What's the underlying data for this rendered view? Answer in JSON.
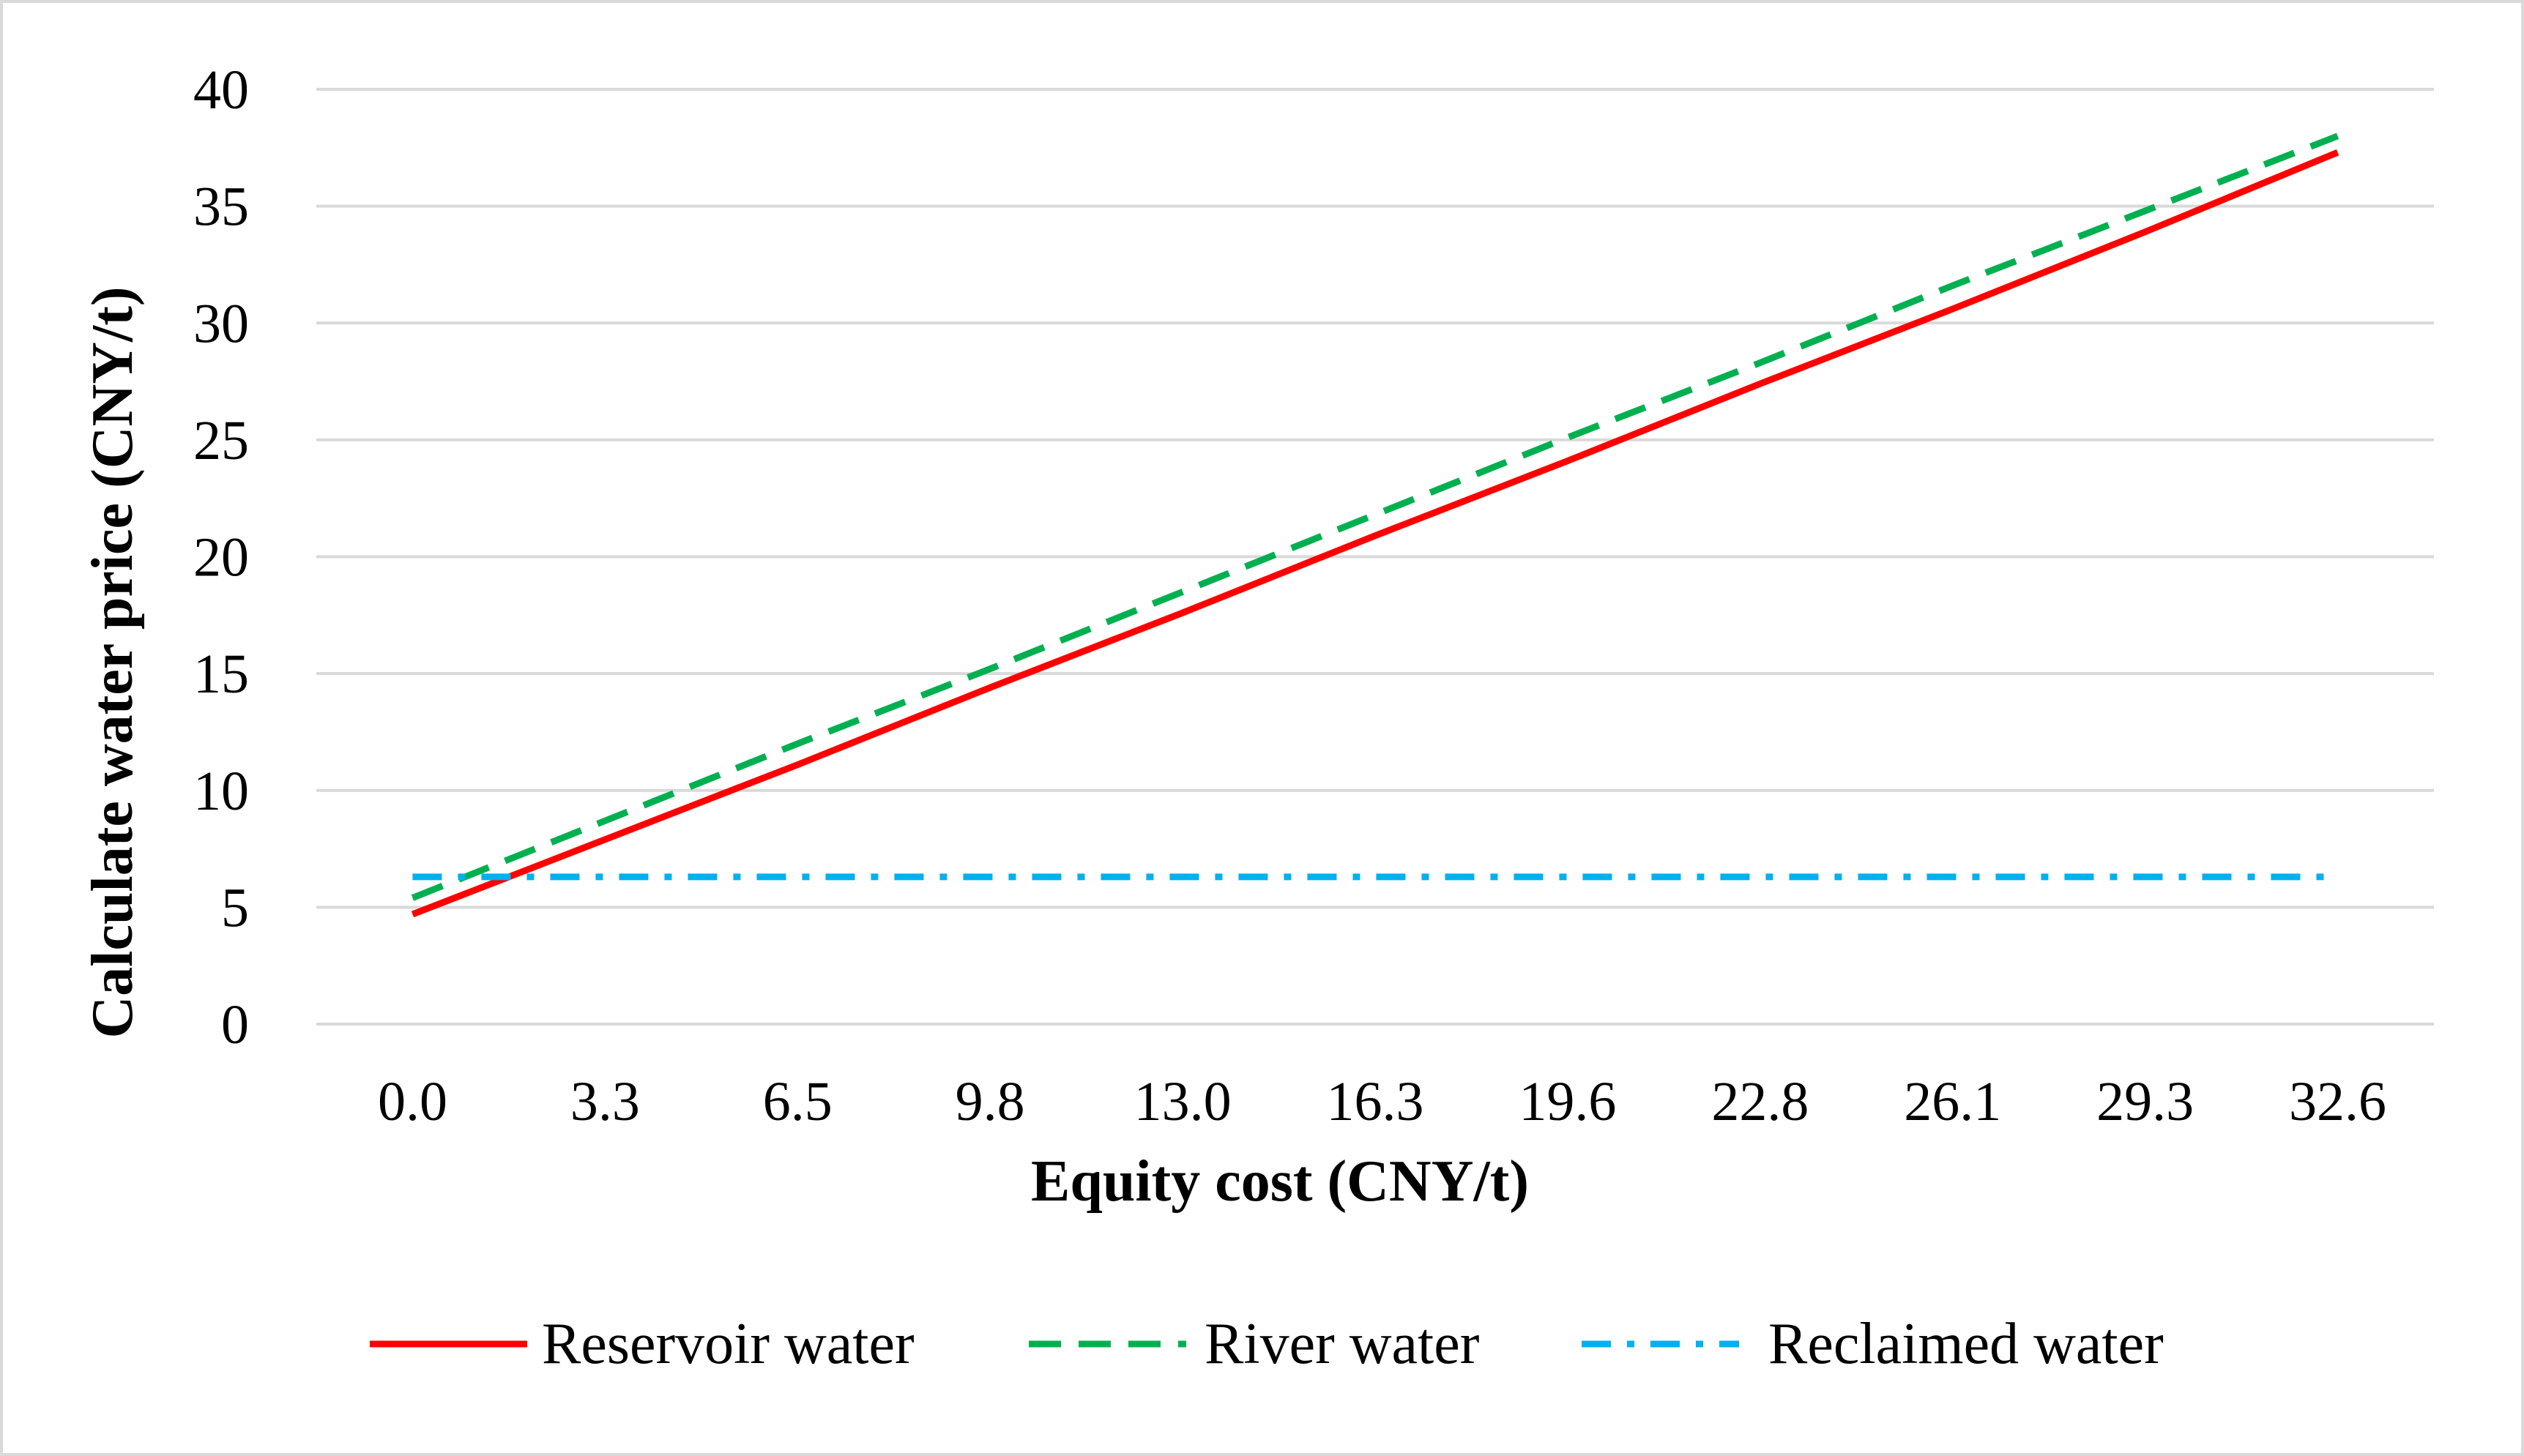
{
  "chart_data": {
    "type": "line",
    "title": "",
    "xlabel": "Equity cost (CNY/t)",
    "ylabel": "Calculate water price (CNY/t)",
    "categories": [
      "0.0",
      "3.3",
      "6.5",
      "9.8",
      "13.0",
      "16.3",
      "19.6",
      "22.8",
      "26.1",
      "29.3",
      "32.6"
    ],
    "x": [
      0.0,
      3.3,
      6.5,
      9.8,
      13.0,
      16.3,
      19.6,
      22.8,
      26.1,
      29.3,
      32.6
    ],
    "ylim": [
      0,
      40
    ],
    "yticks": [
      "0",
      "5",
      "10",
      "15",
      "20",
      "25",
      "30",
      "35",
      "40"
    ],
    "grid": true,
    "legend_position": "bottom",
    "series": [
      {
        "name": "Reservoir water",
        "style": "solid",
        "color": "#ff0000",
        "values": [
          4.7,
          7.9,
          11.1,
          14.4,
          17.6,
          20.9,
          24.1,
          27.4,
          30.6,
          33.9,
          37.3
        ]
      },
      {
        "name": "River water",
        "style": "dashed",
        "color": "#00b050",
        "values": [
          5.4,
          8.7,
          12.0,
          15.2,
          18.5,
          21.8,
          25.1,
          28.3,
          31.6,
          34.8,
          38.0
        ]
      },
      {
        "name": "Reclaimed water",
        "style": "dash-dot",
        "color": "#00b0f0",
        "values": [
          6.3,
          6.3,
          6.3,
          6.3,
          6.3,
          6.3,
          6.3,
          6.3,
          6.3,
          6.3,
          6.3
        ]
      }
    ]
  }
}
